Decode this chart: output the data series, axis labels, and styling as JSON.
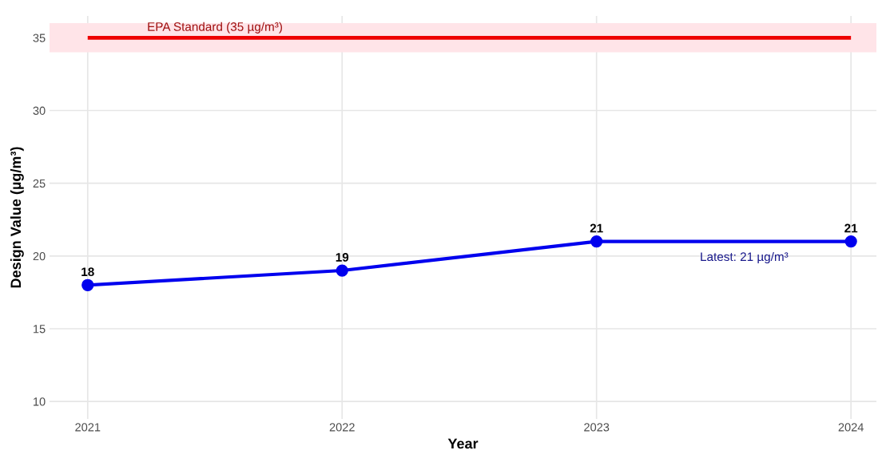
{
  "chart_data": {
    "type": "line",
    "xlabel": "Year",
    "ylabel": "Design Value (µg/m³)",
    "x": [
      2021,
      2022,
      2023,
      2024
    ],
    "series": [
      {
        "color": "#0000ee",
        "values": [
          18,
          19,
          21,
          21
        ]
      }
    ],
    "marker": "circle",
    "line_style": "solid",
    "data_labels": true,
    "xlim": [
      2020.85,
      2024.1
    ],
    "xticks": [
      2021,
      2022,
      2023,
      2024
    ],
    "ylim": [
      8.8,
      36.5
    ],
    "yticks": [
      10,
      15,
      20,
      25,
      30,
      35
    ],
    "grid": true,
    "ref_lines": [
      {
        "axis": "y",
        "value": 35,
        "label": "EPA Standard (35 µg/m³)",
        "color": "#ee0000",
        "line_style": "solid"
      }
    ],
    "bands": [
      {
        "axis": "y",
        "from": 34,
        "to": 36,
        "color": "#ffe4e8"
      }
    ],
    "annotations": [
      "Latest: 21 µg/m³"
    ]
  }
}
